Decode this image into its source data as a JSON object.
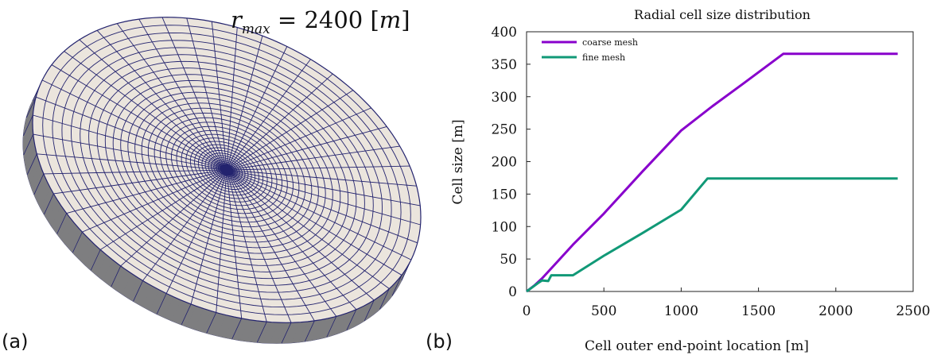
{
  "panels": {
    "a_label": "(a)",
    "b_label": "(b)"
  },
  "mesh": {
    "annotation": {
      "symbol": "r",
      "subscript": "max",
      "equals_value": " = 2400 [",
      "unit": "m",
      "close": "]"
    },
    "colors": {
      "face": "#ebe5dd",
      "side": "#7e7e80",
      "line": "#23236e"
    }
  },
  "chart_data": {
    "type": "line",
    "title": "Radial cell size distribution",
    "xlabel": "Cell outer end-point location [m]",
    "ylabel": "Cell size [m]",
    "xlim": [
      0,
      2500
    ],
    "ylim": [
      0,
      400
    ],
    "xticks": [
      0,
      500,
      1000,
      1500,
      2000,
      2500
    ],
    "yticks": [
      0,
      50,
      100,
      150,
      200,
      250,
      300,
      350,
      400
    ],
    "grid": false,
    "legend_position": "top-left",
    "series": [
      {
        "name": "coarse mesh",
        "color": "#8800cc",
        "x": [
          0,
          50,
          100,
          200,
          300,
          500,
          750,
          1000,
          1200,
          1400,
          1660,
          2400
        ],
        "y": [
          0,
          9,
          20,
          46,
          72,
          120,
          185,
          248,
          285,
          320,
          366,
          366
        ]
      },
      {
        "name": "fine mesh",
        "color": "#119977",
        "x": [
          0,
          40,
          80,
          100,
          140,
          160,
          300,
          500,
          750,
          1000,
          1170,
          1500,
          2000,
          2400
        ],
        "y": [
          0,
          7,
          14,
          17,
          16,
          25,
          25,
          55,
          90,
          126,
          174,
          174,
          174,
          174
        ]
      }
    ]
  }
}
